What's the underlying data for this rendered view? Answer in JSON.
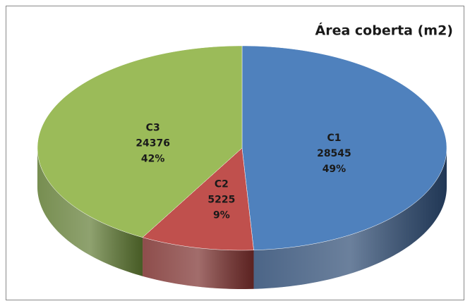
{
  "chart_data": {
    "type": "pie",
    "title": "Área coberta (m2)",
    "categories": [
      "C1",
      "C2",
      "C3"
    ],
    "values": [
      28545,
      5225,
      24376
    ],
    "percent_labels": [
      "49%",
      "9%",
      "42%"
    ],
    "colors": [
      "#4f81bd",
      "#c0504d",
      "#9bbb59"
    ],
    "side_colors": [
      "#2c4a72",
      "#7a2e2c",
      "#5f7a32"
    ]
  }
}
